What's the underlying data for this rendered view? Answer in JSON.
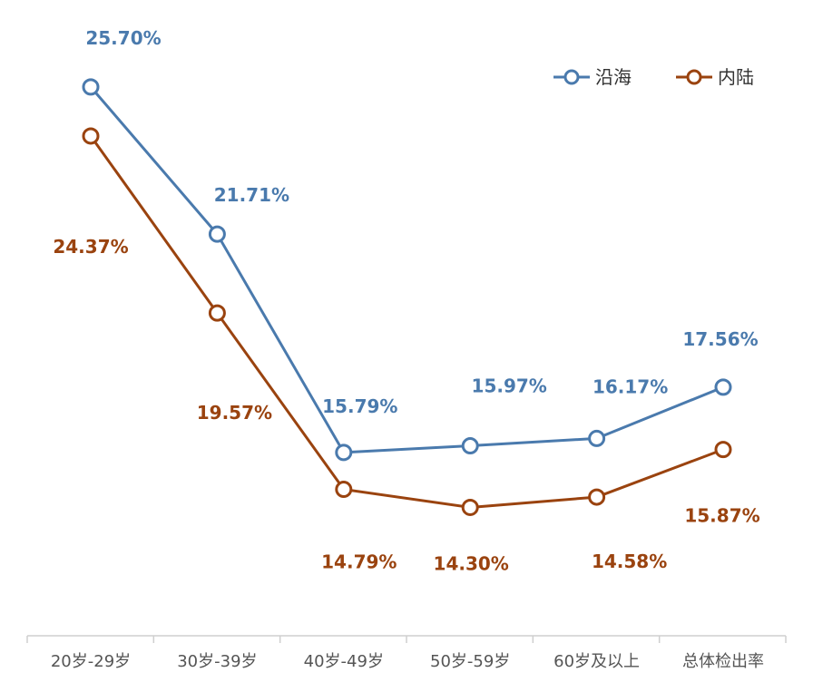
{
  "chart_data": {
    "type": "line",
    "categories": [
      "20岁-29岁",
      "30岁-39岁",
      "40岁-49岁",
      "50岁-59岁",
      "60岁及以上",
      "总体检出率"
    ],
    "series": [
      {
        "name": "沿海",
        "color": "#4a7aad",
        "values": [
          25.7,
          21.71,
          15.79,
          15.97,
          16.17,
          17.56
        ],
        "labels": [
          "25.70%",
          "21.71%",
          "15.79%",
          "15.97%",
          "16.17%",
          "17.56%"
        ]
      },
      {
        "name": "内陆",
        "color": "#9a430f",
        "values": [
          24.37,
          19.57,
          14.79,
          14.3,
          14.58,
          15.87
        ],
        "labels": [
          "24.37%",
          "19.57%",
          "14.79%",
          "14.30%",
          "14.58%",
          "15.87%"
        ]
      }
    ],
    "title": "",
    "xlabel": "",
    "ylabel": "",
    "ylim": [
      12,
      27
    ],
    "grid": false,
    "legend_position": "top-right",
    "marker": "hollow-circle"
  }
}
